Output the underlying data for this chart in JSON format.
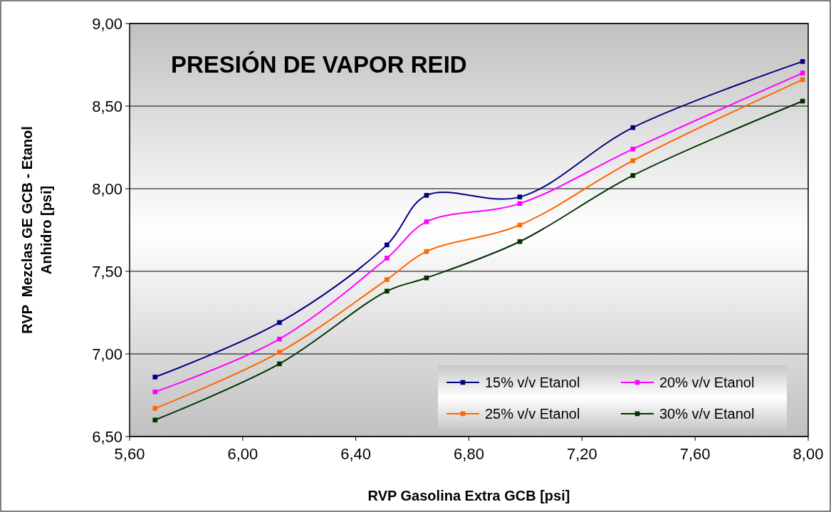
{
  "chart_data": {
    "type": "line",
    "title": "PRESIÓN DE VAPOR REID",
    "xlabel": "RVP Gasolina Extra GCB [psi]",
    "ylabel": "RVP  Mezclas GE GCB - Etanol\nAnhidro [psi]",
    "x": [
      5.69,
      6.13,
      6.51,
      6.65,
      6.98,
      7.38,
      7.98
    ],
    "series": [
      {
        "name": "15% v/v Etanol",
        "color": "#000080",
        "values": [
          6.86,
          7.19,
          7.66,
          7.96,
          7.95,
          8.37,
          8.77
        ]
      },
      {
        "name": "20% v/v Etanol",
        "color": "#ff00ff",
        "values": [
          6.77,
          7.09,
          7.58,
          7.8,
          7.91,
          8.24,
          8.7
        ]
      },
      {
        "name": "25% v/v Etanol",
        "color": "#ff6600",
        "values": [
          6.67,
          7.01,
          7.45,
          7.62,
          7.78,
          8.17,
          8.66
        ]
      },
      {
        "name": "30% v/v Etanol",
        "color": "#003300",
        "values": [
          6.6,
          6.94,
          7.38,
          7.46,
          7.68,
          8.08,
          8.53
        ]
      }
    ],
    "xlim": [
      5.6,
      8.0
    ],
    "xticks": [
      {
        "value": 5.6,
        "label": "5,60"
      },
      {
        "value": 6.0,
        "label": "6,00"
      },
      {
        "value": 6.4,
        "label": "6,40"
      },
      {
        "value": 6.8,
        "label": "6,80"
      },
      {
        "value": 7.2,
        "label": "7,20"
      },
      {
        "value": 7.6,
        "label": "7,60"
      },
      {
        "value": 8.0,
        "label": "8,00"
      }
    ],
    "ylim": [
      6.5,
      9.0
    ],
    "yticks": [
      {
        "value": 6.5,
        "label": "6,50"
      },
      {
        "value": 7.0,
        "label": "7,00"
      },
      {
        "value": 7.5,
        "label": "7,50"
      },
      {
        "value": 8.0,
        "label": "8,00"
      },
      {
        "value": 8.5,
        "label": "8,50"
      },
      {
        "value": 9.0,
        "label": "9,00"
      }
    ],
    "grid": "y",
    "legend": "bottom right",
    "marker": "square",
    "line_style": "solid"
  }
}
